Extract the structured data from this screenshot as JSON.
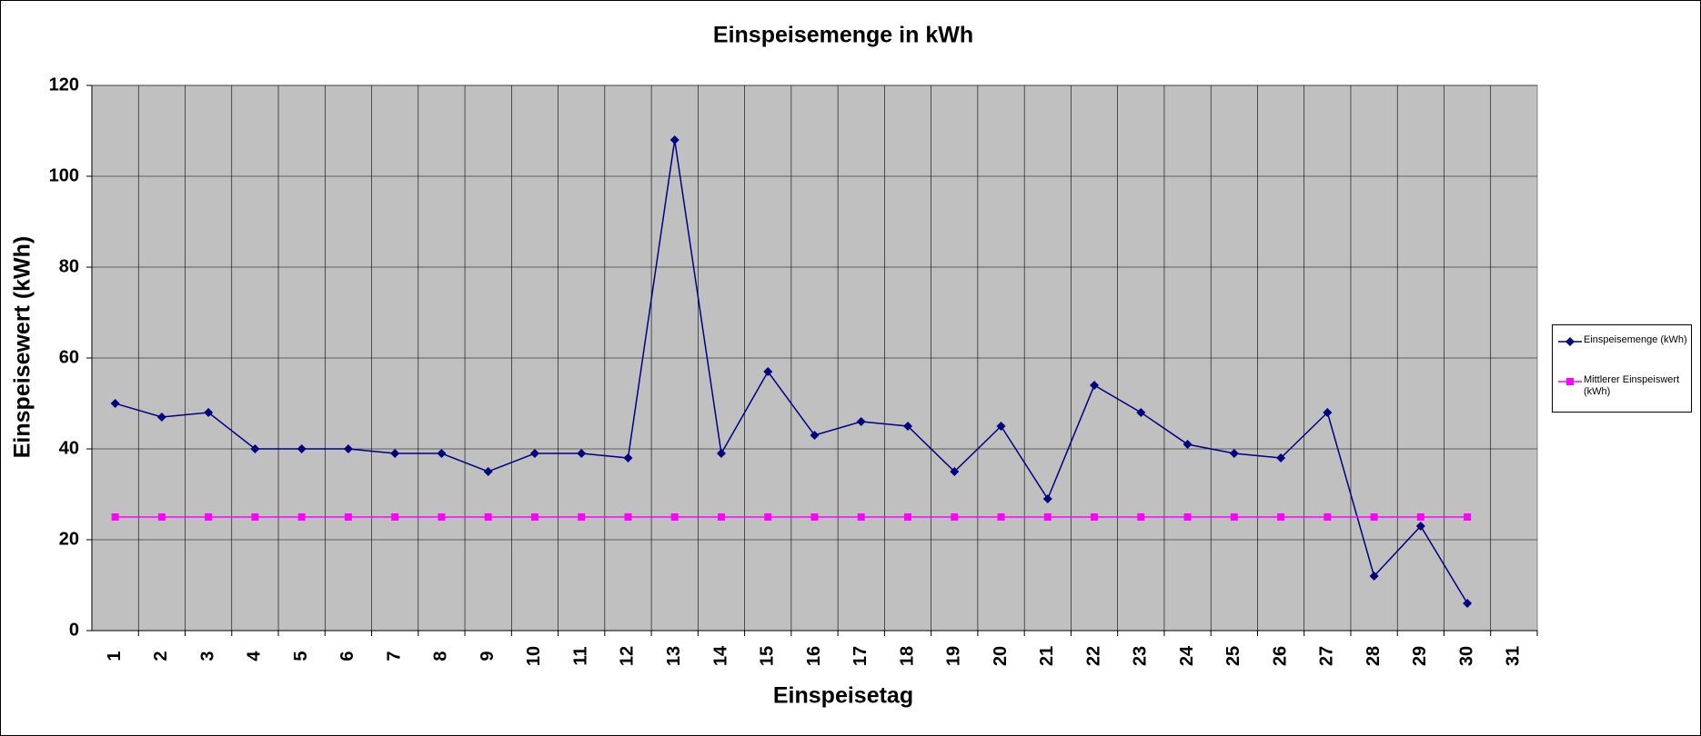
{
  "chart_data": {
    "type": "line",
    "title": "Einspeisemenge in kWh",
    "x_label": "Einspeisetag",
    "y_label": "Einspeisewert  (kWh)",
    "categories": [
      "1",
      "2",
      "3",
      "4",
      "5",
      "6",
      "7",
      "8",
      "9",
      "10",
      "11",
      "12",
      "13",
      "14",
      "15",
      "16",
      "17",
      "18",
      "19",
      "20",
      "21",
      "22",
      "23",
      "24",
      "25",
      "26",
      "27",
      "28",
      "29",
      "30",
      "31"
    ],
    "series": [
      {
        "name": "Einspeisemenge (kWh)",
        "color": "#000080",
        "marker": "diamond",
        "values": [
          50,
          47,
          48,
          40,
          40,
          40,
          39,
          39,
          35,
          39,
          39,
          38,
          108,
          39,
          57,
          43,
          46,
          45,
          35,
          45,
          29,
          54,
          48,
          41,
          39,
          38,
          48,
          12,
          23,
          6,
          null
        ]
      },
      {
        "name": "Mittlerer Einspeiswert (kWh)",
        "color": "#ff00ff",
        "marker": "square",
        "values": [
          25,
          25,
          25,
          25,
          25,
          25,
          25,
          25,
          25,
          25,
          25,
          25,
          25,
          25,
          25,
          25,
          25,
          25,
          25,
          25,
          25,
          25,
          25,
          25,
          25,
          25,
          25,
          25,
          25,
          25,
          null
        ]
      }
    ],
    "ylim": [
      0,
      120
    ],
    "yticks": [
      0,
      20,
      40,
      60,
      80,
      100,
      120
    ],
    "grid": true,
    "legend": "right"
  }
}
